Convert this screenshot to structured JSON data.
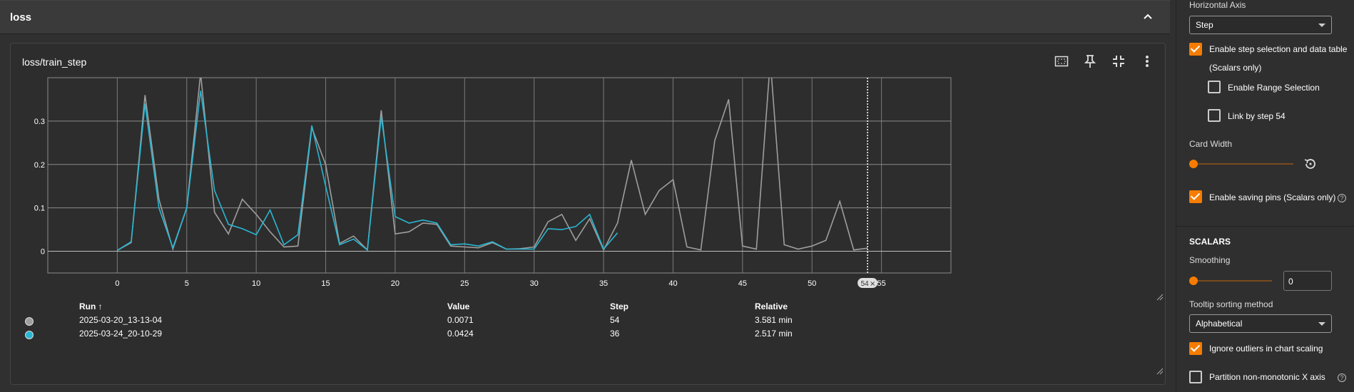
{
  "group": {
    "title": "loss"
  },
  "card": {
    "title": "loss/train_step"
  },
  "chart_data": {
    "type": "line",
    "xlabel": "",
    "ylabel": "",
    "xlim": [
      -5,
      60
    ],
    "ylim": [
      -0.05,
      0.4
    ],
    "x_ticks": [
      0,
      5,
      10,
      15,
      20,
      25,
      30,
      35,
      40,
      45,
      50,
      55
    ],
    "y_ticks": [
      0,
      0.1,
      0.2,
      0.3
    ],
    "y_tick_labels": [
      "0",
      "0.1",
      "0.2",
      "0.3"
    ],
    "grid": true,
    "hover_step_label": "54",
    "hover_step": 54,
    "series": [
      {
        "color": "#9e9e9e",
        "values": [
          [
            0,
            0.002
          ],
          [
            1,
            0.02
          ],
          [
            2,
            0.36
          ],
          [
            3,
            0.12
          ],
          [
            4,
            0.005
          ],
          [
            5,
            0.1
          ],
          [
            6,
            0.41
          ],
          [
            7,
            0.09
          ],
          [
            8,
            0.04
          ],
          [
            9,
            0.12
          ],
          [
            10,
            0.085
          ],
          [
            11,
            0.045
          ],
          [
            12,
            0.01
          ],
          [
            13,
            0.012
          ],
          [
            14,
            0.285
          ],
          [
            15,
            0.2
          ],
          [
            16,
            0.018
          ],
          [
            17,
            0.035
          ],
          [
            18,
            0.003
          ],
          [
            19,
            0.325
          ],
          [
            20,
            0.04
          ],
          [
            21,
            0.045
          ],
          [
            22,
            0.065
          ],
          [
            23,
            0.062
          ],
          [
            24,
            0.012
          ],
          [
            25,
            0.01
          ],
          [
            26,
            0.008
          ],
          [
            27,
            0.02
          ],
          [
            28,
            0.005
          ],
          [
            29,
            0.006
          ],
          [
            30,
            0.01
          ],
          [
            31,
            0.068
          ],
          [
            32,
            0.085
          ],
          [
            33,
            0.025
          ],
          [
            34,
            0.075
          ],
          [
            35,
            0.003
          ],
          [
            36,
            0.065
          ],
          [
            37,
            0.21
          ],
          [
            38,
            0.085
          ],
          [
            39,
            0.14
          ],
          [
            40,
            0.165
          ],
          [
            41,
            0.01
          ],
          [
            42,
            0.003
          ],
          [
            43,
            0.255
          ],
          [
            44,
            0.35
          ],
          [
            45,
            0.012
          ],
          [
            46,
            0.005
          ],
          [
            47,
            0.44
          ],
          [
            48,
            0.015
          ],
          [
            49,
            0.005
          ],
          [
            50,
            0.012
          ],
          [
            51,
            0.025
          ],
          [
            52,
            0.115
          ],
          [
            53,
            0.003
          ],
          [
            54,
            0.0071
          ]
        ]
      },
      {
        "color": "#29b6d2",
        "values": [
          [
            0,
            0.002
          ],
          [
            1,
            0.022
          ],
          [
            2,
            0.34
          ],
          [
            3,
            0.1
          ],
          [
            4,
            0.008
          ],
          [
            5,
            0.1
          ],
          [
            6,
            0.37
          ],
          [
            7,
            0.14
          ],
          [
            8,
            0.062
          ],
          [
            9,
            0.052
          ],
          [
            10,
            0.038
          ],
          [
            11,
            0.095
          ],
          [
            12,
            0.015
          ],
          [
            13,
            0.038
          ],
          [
            14,
            0.29
          ],
          [
            15,
            0.15
          ],
          [
            16,
            0.015
          ],
          [
            17,
            0.028
          ],
          [
            18,
            0.003
          ],
          [
            19,
            0.31
          ],
          [
            20,
            0.08
          ],
          [
            21,
            0.065
          ],
          [
            22,
            0.072
          ],
          [
            23,
            0.065
          ],
          [
            24,
            0.015
          ],
          [
            25,
            0.017
          ],
          [
            26,
            0.012
          ],
          [
            27,
            0.022
          ],
          [
            28,
            0.005
          ],
          [
            29,
            0.005
          ],
          [
            30,
            0.005
          ],
          [
            31,
            0.052
          ],
          [
            32,
            0.05
          ],
          [
            33,
            0.057
          ],
          [
            34,
            0.085
          ],
          [
            35,
            0.005
          ],
          [
            36,
            0.0424
          ]
        ]
      }
    ]
  },
  "runs_table": {
    "headers": {
      "run": "Run ↑",
      "value": "Value",
      "step": "Step",
      "relative": "Relative"
    },
    "rows": [
      {
        "color": "#9e9e9e",
        "run": "2025-03-20_13-13-04",
        "value": "0.0071",
        "step": "54",
        "relative": "3.581 min"
      },
      {
        "color": "#29b6d2",
        "run": "2025-03-24_20-10-29",
        "value": "0.0424",
        "step": "36",
        "relative": "2.517 min"
      }
    ]
  },
  "settings": {
    "horizontal_axis_label": "Horizontal Axis",
    "horizontal_axis_value": "Step",
    "step_selection_label": "Enable step selection and data table",
    "scalars_only_note": "(Scalars only)",
    "range_selection_label": "Enable Range Selection",
    "link_by_step_label": "Link by step 54",
    "card_width_label": "Card Width",
    "saving_pins_label": "Enable saving pins (Scalars only)",
    "scalars_heading": "SCALARS",
    "smoothing_label": "Smoothing",
    "smoothing_value": "0",
    "tooltip_sort_label": "Tooltip sorting method",
    "tooltip_sort_value": "Alphabetical",
    "ignore_outliers_label": "Ignore outliers in chart scaling",
    "partition_label": "Partition non-monotonic X axis",
    "step_selection_checked": true,
    "range_selection_checked": false,
    "link_by_step_checked": false,
    "saving_pins_checked": true,
    "ignore_outliers_checked": true,
    "partition_checked": false,
    "smoothing": 0,
    "card_width": 0
  },
  "icons": {
    "collapse": "chevron-up-icon",
    "fit_domain": "fit-domain-icon",
    "pin": "pin-icon",
    "collapse_card": "fullscreen-exit-icon",
    "more": "more-vert-icon",
    "reset": "reset-icon",
    "help": "help-icon"
  }
}
